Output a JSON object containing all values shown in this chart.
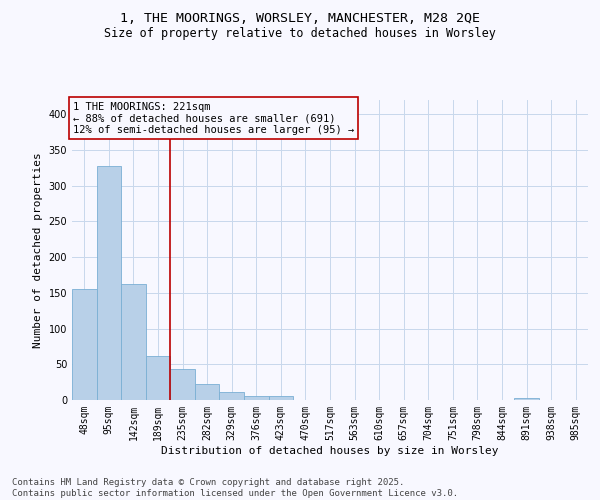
{
  "title_line1": "1, THE MOORINGS, WORSLEY, MANCHESTER, M28 2QE",
  "title_line2": "Size of property relative to detached houses in Worsley",
  "xlabel": "Distribution of detached houses by size in Worsley",
  "ylabel": "Number of detached properties",
  "bins": [
    "48sqm",
    "95sqm",
    "142sqm",
    "189sqm",
    "235sqm",
    "282sqm",
    "329sqm",
    "376sqm",
    "423sqm",
    "470sqm",
    "517sqm",
    "563sqm",
    "610sqm",
    "657sqm",
    "704sqm",
    "751sqm",
    "798sqm",
    "844sqm",
    "891sqm",
    "938sqm",
    "985sqm"
  ],
  "values": [
    155,
    328,
    163,
    62,
    43,
    22,
    11,
    5,
    5,
    0,
    0,
    0,
    0,
    0,
    0,
    0,
    0,
    0,
    3,
    0,
    0
  ],
  "bar_color": "#b8d0e8",
  "bar_edgecolor": "#7aafd4",
  "vline_x_index": 3,
  "vline_color": "#bb0000",
  "annotation_text": "1 THE MOORINGS: 221sqm\n← 88% of detached houses are smaller (691)\n12% of semi-detached houses are larger (95) →",
  "annotation_box_color": "#bb0000",
  "annotation_text_color": "#000000",
  "ylim": [
    0,
    420
  ],
  "yticks": [
    0,
    50,
    100,
    150,
    200,
    250,
    300,
    350,
    400
  ],
  "background_color": "#f8f8ff",
  "grid_color": "#c8d8ec",
  "footnote": "Contains HM Land Registry data © Crown copyright and database right 2025.\nContains public sector information licensed under the Open Government Licence v3.0.",
  "title_fontsize": 9.5,
  "subtitle_fontsize": 8.5,
  "axis_label_fontsize": 8,
  "tick_fontsize": 7,
  "annotation_fontsize": 7.5,
  "footnote_fontsize": 6.5
}
